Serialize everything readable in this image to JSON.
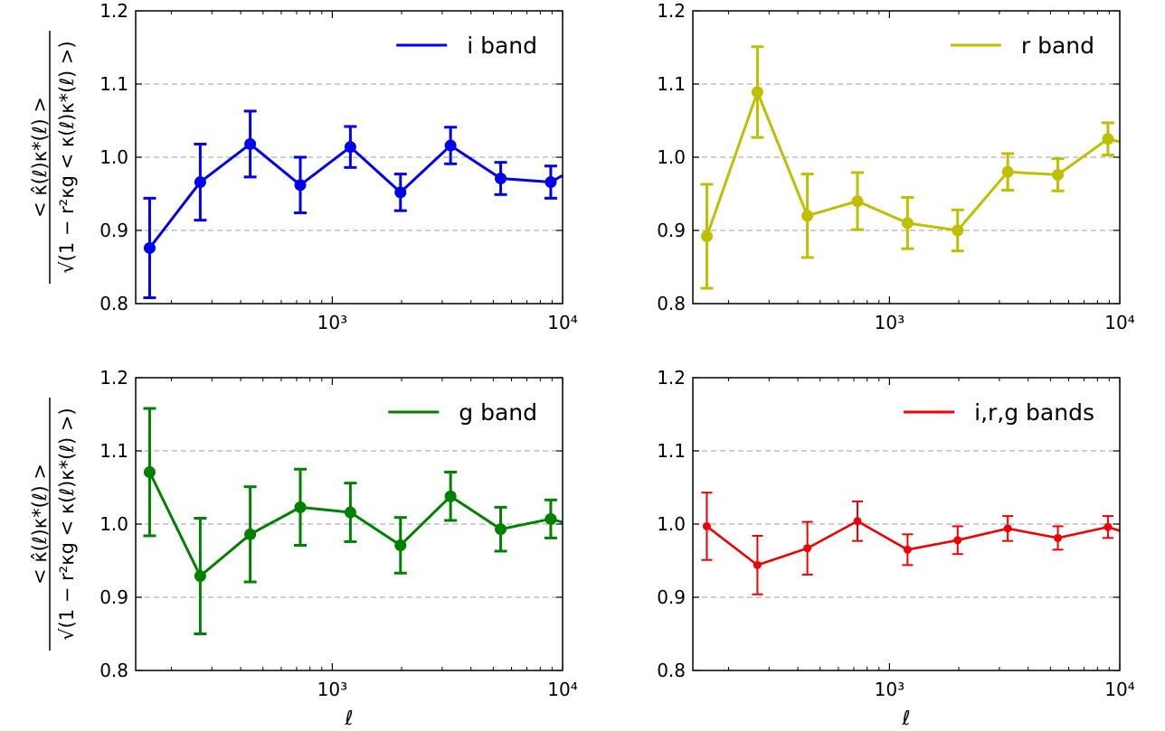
{
  "figure": {
    "xlabel": "ℓ",
    "ylabel_numerator": "< κ̂(ℓ)κ*(ℓ) >",
    "ylabel_denominator": "√(1 − r²κg < κ(ℓ)κ*(ℓ) >)"
  },
  "chart_data": [
    {
      "type": "line",
      "legend": "i band",
      "color": "#0000ee",
      "marker_size": "large",
      "xscale": "log",
      "xlim": [
        140,
        10000
      ],
      "ylim": [
        0.8,
        1.2
      ],
      "yticks": [
        "0.8",
        "0.9",
        "1.0",
        "1.1",
        "1.2"
      ],
      "xticks": [
        "10³",
        "10⁴"
      ],
      "grid": "dashed horizontal at 0.9, 1.0, 1.1",
      "legend_position": "top-right",
      "x": [
        161,
        267,
        440,
        726,
        1198,
        1977,
        3262,
        5384,
        8884
      ],
      "values": [
        0.876,
        0.966,
        1.018,
        0.962,
        1.014,
        0.952,
        1.016,
        0.971,
        0.966
      ],
      "errors": [
        0.068,
        0.052,
        0.045,
        0.038,
        0.028,
        0.025,
        0.025,
        0.022,
        0.022
      ],
      "line_end": 0.982
    },
    {
      "type": "line",
      "legend": "r band",
      "color": "#bfbf00",
      "marker_size": "large",
      "xscale": "log",
      "xlim": [
        140,
        10000
      ],
      "ylim": [
        0.8,
        1.2
      ],
      "yticks": [
        "0.8",
        "0.9",
        "1.0",
        "1.1",
        "1.2"
      ],
      "xticks": [
        "10³",
        "10⁴"
      ],
      "grid": "dashed horizontal at 0.9, 1.0, 1.1",
      "legend_position": "top-right",
      "x": [
        161,
        267,
        440,
        726,
        1198,
        1977,
        3262,
        5384,
        8884
      ],
      "values": [
        0.892,
        1.089,
        0.92,
        0.94,
        0.91,
        0.9,
        0.98,
        0.976,
        1.025
      ],
      "errors": [
        0.071,
        0.062,
        0.057,
        0.039,
        0.035,
        0.028,
        0.025,
        0.022,
        0.022
      ],
      "line_end": 1.018
    },
    {
      "type": "line",
      "legend": "g band",
      "color": "#008000",
      "marker_size": "large",
      "xscale": "log",
      "xlim": [
        140,
        10000
      ],
      "ylim": [
        0.8,
        1.2
      ],
      "yticks": [
        "0.8",
        "0.9",
        "1.0",
        "1.1",
        "1.2"
      ],
      "xticks": [
        "10³",
        "10⁴"
      ],
      "grid": "dashed horizontal at 0.9, 1.0, 1.1",
      "legend_position": "top-right",
      "x": [
        161,
        267,
        440,
        726,
        1198,
        1977,
        3262,
        5384,
        8884
      ],
      "values": [
        1.071,
        0.929,
        0.986,
        1.023,
        1.016,
        0.971,
        1.038,
        0.993,
        1.007
      ],
      "errors": [
        0.087,
        0.079,
        0.065,
        0.052,
        0.04,
        0.038,
        0.033,
        0.03,
        0.026
      ],
      "line_end": 0.999
    },
    {
      "type": "line",
      "legend": "i,r,g bands",
      "color": "#ee0000",
      "marker_size": "small",
      "xscale": "log",
      "xlim": [
        140,
        10000
      ],
      "ylim": [
        0.8,
        1.2
      ],
      "yticks": [
        "0.8",
        "0.9",
        "1.0",
        "1.1",
        "1.2"
      ],
      "xticks": [
        "10³",
        "10⁴"
      ],
      "grid": "dashed horizontal at 0.9, 1.0, 1.1",
      "legend_position": "top-right",
      "x": [
        161,
        267,
        440,
        726,
        1198,
        1977,
        3262,
        5384,
        8884
      ],
      "values": [
        0.997,
        0.944,
        0.967,
        1.004,
        0.965,
        0.978,
        0.994,
        0.981,
        0.996
      ],
      "errors": [
        0.046,
        0.04,
        0.036,
        0.027,
        0.021,
        0.019,
        0.017,
        0.016,
        0.015
      ],
      "line_end": 0.987
    }
  ]
}
